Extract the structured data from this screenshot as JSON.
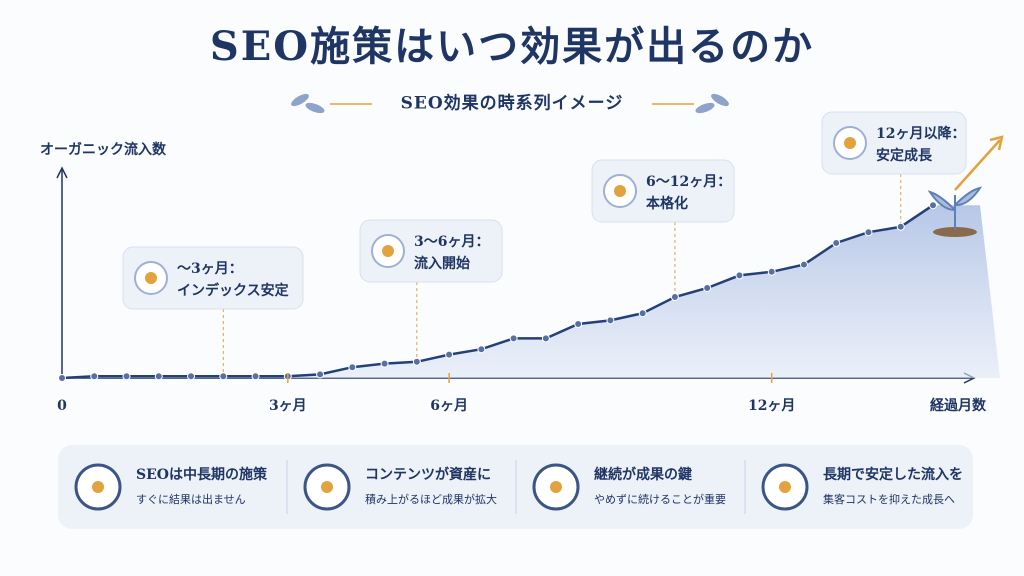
{
  "chart_data": {
    "type": "line",
    "title": "SEO施策はいつ効果が出るのか",
    "subtitle": "SEO効果の時系列イメージ",
    "y_label": "オーガニック流入数",
    "x_label": "経過月数",
    "categories": [
      "0",
      null,
      null,
      null,
      null,
      null,
      null,
      "3ヶ月",
      null,
      null,
      null,
      null,
      "6ヶ月",
      null,
      null,
      null,
      null,
      null,
      null,
      null,
      null,
      null,
      "12ヶ月",
      null,
      null,
      null,
      null,
      null
    ],
    "values": [
      0,
      1,
      1,
      1,
      1,
      1,
      1,
      1,
      2,
      6,
      8,
      9,
      13,
      16,
      22,
      22,
      30,
      32,
      36,
      45,
      50,
      57,
      59,
      63,
      75,
      81,
      84,
      96
    ],
    "ylim": [
      0,
      100
    ],
    "color": "#24407a",
    "annotations": [
      {
        "title": "〜3ヶ月：",
        "text": "インデックス安定"
      },
      {
        "title": "3〜6ヶ月：",
        "text": "流入開始"
      },
      {
        "title": "6〜12ヶ月：",
        "text": "本格化"
      },
      {
        "title": "12ヶ月以降：",
        "text": "安定成長"
      }
    ]
  },
  "cards": [
    {
      "title": "SEOは中長期の施策",
      "text": "すぐに結果は出ません"
    },
    {
      "title": "コンテンツが資産に",
      "text": "積み上がるほど成果が拡大"
    },
    {
      "title": "継続が成果の鍵",
      "text": "やめずに続けることが重要"
    },
    {
      "title": "長期で安定した流入を",
      "text": "集客コストを抑えた成長へ"
    }
  ]
}
